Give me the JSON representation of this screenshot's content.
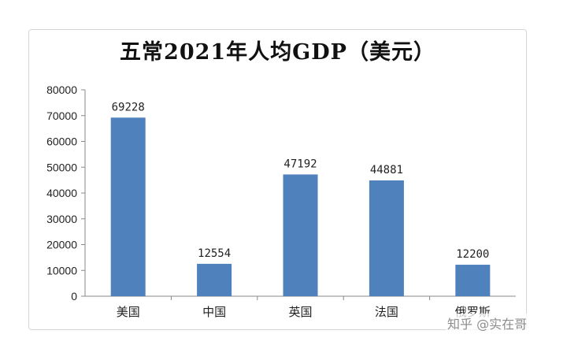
{
  "chart_data": {
    "type": "bar",
    "title": "五常2021年人均GDP（美元）",
    "categories": [
      "美国",
      "中国",
      "英国",
      "法国",
      "俄罗斯"
    ],
    "values": [
      69228,
      12554,
      47192,
      44881,
      12200
    ],
    "data_labels": [
      "69228",
      "12554",
      "47192",
      "44881",
      "12200"
    ],
    "ylim": [
      0,
      80000
    ],
    "yticks": [
      0,
      10000,
      20000,
      30000,
      40000,
      50000,
      60000,
      70000,
      80000
    ],
    "ytick_labels": [
      "0",
      "10000",
      "20000",
      "30000",
      "40000",
      "50000",
      "60000",
      "70000",
      "80000"
    ],
    "xlabel": "",
    "ylabel": "",
    "grid": false,
    "bar_color": "#4f81bd"
  },
  "watermark": "知乎 @实在哥"
}
